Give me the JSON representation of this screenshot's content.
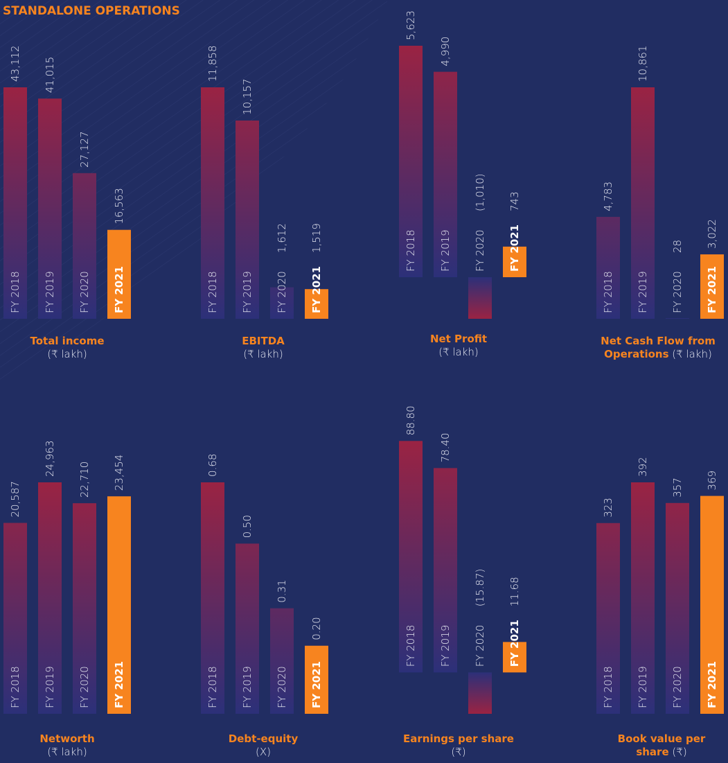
{
  "heading": "STANDALONE OPERATIONS",
  "chart_data": [
    {
      "type": "bar",
      "title": "Total income",
      "subtitle": "(₹ lakh)",
      "categories": [
        "FY 2018",
        "FY 2019",
        "FY 2020",
        "FY 2021"
      ],
      "values": [
        43112,
        41015,
        27127,
        16563
      ],
      "value_labels": [
        "43,112",
        "41,015",
        "27,127",
        "16,563"
      ],
      "colors": [
        "#9a2343",
        "#2c3079"
      ],
      "highlight_color": "#f7841f"
    },
    {
      "type": "bar",
      "title": "EBITDA",
      "subtitle": "(₹ lakh)",
      "categories": [
        "FY 2018",
        "FY 2019",
        "FY 2020",
        "FY 2021"
      ],
      "values": [
        11858,
        10157,
        1612,
        1519
      ],
      "value_labels": [
        "11,858",
        "10,157",
        "1,612",
        "1,519"
      ],
      "colors": [
        "#9a2343",
        "#2c3079"
      ],
      "highlight_color": "#f7841f"
    },
    {
      "type": "bar",
      "title": "Net Profit",
      "subtitle": "(₹ lakh)",
      "categories": [
        "FY 2018",
        "FY 2019",
        "FY 2020",
        "FY 2021"
      ],
      "values": [
        5623,
        4990,
        -1010,
        743
      ],
      "value_labels": [
        "5,623",
        "4,990",
        "(1,010)",
        "743"
      ],
      "colors": [
        "#9a2343",
        "#2c3079"
      ],
      "highlight_color": "#f7841f"
    },
    {
      "type": "bar",
      "title": "Net Cash Flow from Operations",
      "subtitle": "(₹ lakh)",
      "categories": [
        "FY 2018",
        "FY 2019",
        "FY 2020",
        "FY 2021"
      ],
      "values": [
        4783,
        10861,
        28,
        3022
      ],
      "value_labels": [
        "4,783",
        "10,861",
        "28",
        "3,022"
      ],
      "colors": [
        "#9a2343",
        "#2c3079"
      ],
      "highlight_color": "#f7841f"
    },
    {
      "type": "bar",
      "title": "Networth",
      "subtitle": "(₹ lakh)",
      "categories": [
        "FY 2018",
        "FY 2019",
        "FY 2020",
        "FY 2021"
      ],
      "values": [
        20587,
        24963,
        22710,
        23454
      ],
      "value_labels": [
        "20,587",
        "24,963",
        "22,710",
        "23,454"
      ],
      "colors": [
        "#9a2343",
        "#2c3079"
      ],
      "highlight_color": "#f7841f"
    },
    {
      "type": "bar",
      "title": "Debt-equity",
      "subtitle": "(X)",
      "categories": [
        "FY 2018",
        "FY 2019",
        "FY 2020",
        "FY 2021"
      ],
      "values": [
        0.68,
        0.5,
        0.31,
        0.2
      ],
      "value_labels": [
        "0.68",
        "0.50",
        "0.31",
        "0.20"
      ],
      "colors": [
        "#9a2343",
        "#2c3079"
      ],
      "highlight_color": "#f7841f"
    },
    {
      "type": "bar",
      "title": "Earnings per share",
      "subtitle": "(₹)",
      "categories": [
        "FY 2018",
        "FY 2019",
        "FY 2020",
        "FY 2021"
      ],
      "values": [
        88.8,
        78.4,
        -15.87,
        11.68
      ],
      "value_labels": [
        "88.80",
        "78.40",
        "(15.87)",
        "11.68"
      ],
      "colors": [
        "#9a2343",
        "#2c3079"
      ],
      "highlight_color": "#f7841f"
    },
    {
      "type": "bar",
      "title": "Book value per share",
      "subtitle": "(₹)",
      "categories": [
        "FY 2018",
        "FY 2019",
        "FY 2020",
        "FY 2021"
      ],
      "values": [
        323,
        392,
        357,
        369
      ],
      "value_labels": [
        "323",
        "392",
        "357",
        "369"
      ],
      "colors": [
        "#9a2343",
        "#2c3079"
      ],
      "highlight_color": "#f7841f"
    }
  ]
}
